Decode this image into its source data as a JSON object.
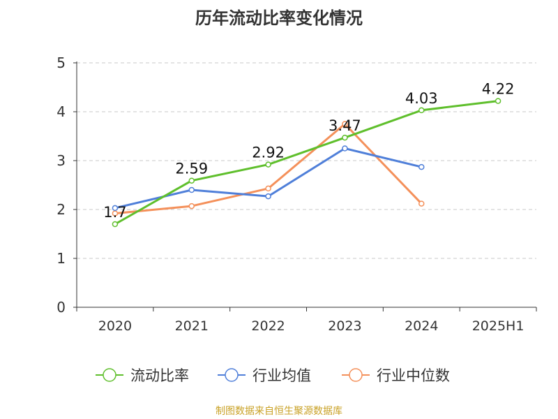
{
  "chart_data": {
    "type": "line",
    "title": "历年流动比率变化情况",
    "categories": [
      "2020",
      "2021",
      "2022",
      "2023",
      "2024",
      "2025H1"
    ],
    "ylim": [
      0,
      5
    ],
    "yticks": [
      "0",
      "1",
      "2",
      "3",
      "4",
      "5"
    ],
    "grid": "horizontal dashed",
    "legend_position": "bottom",
    "series": [
      {
        "name": "流动比率",
        "color": "#5fbf2c",
        "values": [
          1.7,
          2.59,
          2.92,
          3.47,
          4.03,
          4.22
        ],
        "labels": [
          "1.7",
          "2.59",
          "2.92",
          "3.47",
          "4.03",
          "4.22"
        ]
      },
      {
        "name": "行业均值",
        "color": "#4f7fd9",
        "values": [
          2.03,
          2.4,
          2.27,
          3.25,
          2.87,
          null
        ]
      },
      {
        "name": "行业中位数",
        "color": "#f4905a",
        "values": [
          1.92,
          2.07,
          2.43,
          3.75,
          2.12,
          null
        ]
      }
    ]
  },
  "footer": {
    "source": "制图数据来自恒生聚源数据库",
    "color": "#c9a227"
  }
}
